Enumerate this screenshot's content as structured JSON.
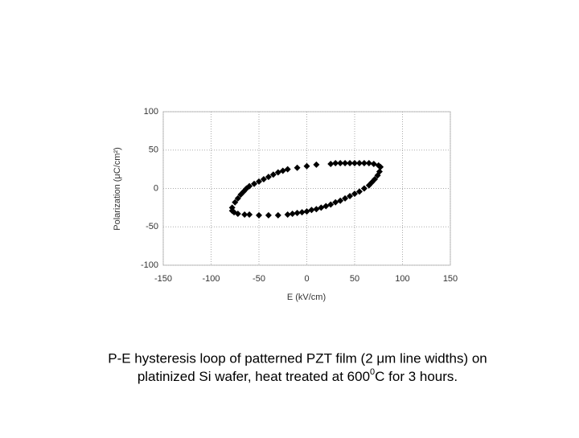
{
  "chart_data": {
    "type": "scatter",
    "xlabel": "E (kV/cm)",
    "ylabel": "Polarization (μC/cm²)",
    "caption": {
      "line1": "P-E hysteresis loop of patterned PZT film (2 μm line widths) on",
      "line2_a": "platinized Si wafer, heat treated at 600",
      "line2_sup": "0",
      "line2_b": "C for 3 hours."
    },
    "color": "#000000",
    "grid": true,
    "xlim": [
      -150,
      150
    ],
    "xticks": [
      -150,
      -100,
      -50,
      0,
      50,
      100,
      150
    ],
    "ylim": [
      -100,
      100
    ],
    "yticks": [
      -100,
      -50,
      0,
      50,
      100
    ],
    "x": [
      77,
      75,
      70,
      65,
      60,
      55,
      50,
      45,
      40,
      35,
      30,
      25,
      10,
      0,
      -10,
      -20,
      -25,
      -30,
      -35,
      -40,
      -45,
      -50,
      -55,
      -60,
      -63,
      -66,
      -69,
      -72,
      -75,
      -78,
      -78,
      -76,
      -72,
      -65,
      -60,
      -50,
      -40,
      -30,
      -20,
      -15,
      -10,
      -5,
      0,
      5,
      10,
      15,
      20,
      25,
      30,
      35,
      40,
      45,
      50,
      55,
      60,
      65,
      68,
      71,
      74,
      76
    ],
    "y": [
      28,
      30,
      32,
      33,
      33,
      33,
      33,
      33,
      33,
      33,
      33,
      32,
      31,
      29,
      27,
      25,
      23,
      21,
      18,
      15,
      12,
      9,
      6,
      3,
      0,
      -4,
      -8,
      -13,
      -18,
      -25,
      -29,
      -31,
      -33,
      -34,
      -34,
      -35,
      -35,
      -35,
      -34,
      -33,
      -32,
      -31,
      -30,
      -28,
      -27,
      -25,
      -23,
      -21,
      -18,
      -16,
      -13,
      -10,
      -7,
      -4,
      0,
      4,
      8,
      12,
      17,
      22
    ]
  }
}
